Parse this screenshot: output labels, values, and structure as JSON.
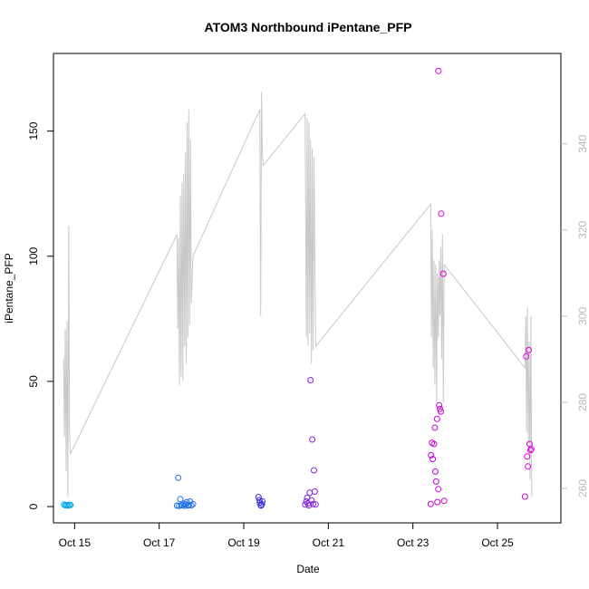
{
  "chart_data": {
    "type": "scatter",
    "title": "ATOM3 Northbound iPentane_PFP",
    "xlabel": "Date",
    "ylabel": "iPentane_PFP",
    "xlim": [
      14.5,
      26.5
    ],
    "ylim": [
      -6.5,
      181
    ],
    "x_ticks": [
      {
        "value": 15,
        "label": "Oct 15"
      },
      {
        "value": 17,
        "label": "Oct 17"
      },
      {
        "value": 19,
        "label": "Oct 19"
      },
      {
        "value": 21,
        "label": "Oct 21"
      },
      {
        "value": 23,
        "label": "Oct 23"
      },
      {
        "value": 25,
        "label": "Oct 25"
      }
    ],
    "y_ticks": [
      0,
      50,
      100,
      150
    ],
    "y2_ticks": [
      260,
      280,
      300,
      320,
      340
    ],
    "y2lim": [
      252,
      361
    ],
    "colors": {
      "axes": "#000000",
      "line": "#c8c8c8",
      "right_axis": "#b8b8b8",
      "gradient_start": "#00a8e8",
      "gradient_mid": "#2b2bd8",
      "gradient_end": "#e000e0"
    },
    "points": [
      {
        "x": 14.75,
        "y": 0.8,
        "color": "#00a8e8"
      },
      {
        "x": 14.78,
        "y": 0.5,
        "color": "#00a8e8"
      },
      {
        "x": 14.81,
        "y": 0.6,
        "color": "#00a8e8"
      },
      {
        "x": 14.84,
        "y": 0.4,
        "color": "#00a8e8"
      },
      {
        "x": 14.87,
        "y": 0.7,
        "color": "#00a8e8"
      },
      {
        "x": 14.9,
        "y": 0.6,
        "color": "#00a8e8"
      },
      {
        "x": 17.45,
        "y": 11.5,
        "color": "#1f6fe8"
      },
      {
        "x": 17.42,
        "y": 0.4,
        "color": "#1f6fe8"
      },
      {
        "x": 17.47,
        "y": 0.3,
        "color": "#1f6fe8"
      },
      {
        "x": 17.5,
        "y": 3.0,
        "color": "#1f6fe8"
      },
      {
        "x": 17.52,
        "y": 0.5,
        "color": "#1f6fe8"
      },
      {
        "x": 17.55,
        "y": 0.6,
        "color": "#1f6fe8"
      },
      {
        "x": 17.58,
        "y": 1.2,
        "color": "#1f6fe8"
      },
      {
        "x": 17.6,
        "y": 0.3,
        "color": "#1f6fe8"
      },
      {
        "x": 17.62,
        "y": 0.8,
        "color": "#1f6fe8"
      },
      {
        "x": 17.65,
        "y": 1.8,
        "color": "#1f6fe8"
      },
      {
        "x": 17.68,
        "y": 0.4,
        "color": "#1f6fe8"
      },
      {
        "x": 17.7,
        "y": 0.6,
        "color": "#1f6fe8"
      },
      {
        "x": 17.73,
        "y": 2.0,
        "color": "#1f6fe8"
      },
      {
        "x": 17.76,
        "y": 0.5,
        "color": "#1f6fe8"
      },
      {
        "x": 17.8,
        "y": 1.0,
        "color": "#1f6fe8"
      },
      {
        "x": 19.35,
        "y": 3.8,
        "color": "#3d2ed8"
      },
      {
        "x": 19.37,
        "y": 2.6,
        "color": "#3d2ed8"
      },
      {
        "x": 19.38,
        "y": 1.5,
        "color": "#3d2ed8"
      },
      {
        "x": 19.4,
        "y": 0.5,
        "color": "#3d2ed8"
      },
      {
        "x": 19.41,
        "y": 0.4,
        "color": "#3d2ed8"
      },
      {
        "x": 19.43,
        "y": 1.0,
        "color": "#3d2ed8"
      },
      {
        "x": 19.44,
        "y": 2.1,
        "color": "#3d2ed8"
      },
      {
        "x": 20.45,
        "y": 0.8,
        "color": "#7a22e0"
      },
      {
        "x": 20.48,
        "y": 2.0,
        "color": "#7a22e0"
      },
      {
        "x": 20.5,
        "y": 3.5,
        "color": "#7a22e0"
      },
      {
        "x": 20.52,
        "y": 1.2,
        "color": "#7a22e0"
      },
      {
        "x": 20.54,
        "y": 0.5,
        "color": "#7a22e0"
      },
      {
        "x": 20.56,
        "y": 5.5,
        "color": "#7a22e0"
      },
      {
        "x": 20.58,
        "y": 50.5,
        "color": "#7a22e0"
      },
      {
        "x": 20.6,
        "y": 2.5,
        "color": "#7a22e0"
      },
      {
        "x": 20.62,
        "y": 26.8,
        "color": "#8a1ee0"
      },
      {
        "x": 20.64,
        "y": 1.0,
        "color": "#8a1ee0"
      },
      {
        "x": 20.66,
        "y": 14.5,
        "color": "#8a1ee0"
      },
      {
        "x": 20.68,
        "y": 6.0,
        "color": "#8a1ee0"
      },
      {
        "x": 20.7,
        "y": 0.8,
        "color": "#8a1ee0"
      },
      {
        "x": 23.42,
        "y": 1.0,
        "color": "#c800e0"
      },
      {
        "x": 23.43,
        "y": 20.5,
        "color": "#c800e0"
      },
      {
        "x": 23.45,
        "y": 25.5,
        "color": "#c800e0"
      },
      {
        "x": 23.47,
        "y": 19.0,
        "color": "#c800e0"
      },
      {
        "x": 23.5,
        "y": 25.0,
        "color": "#c800e0"
      },
      {
        "x": 23.52,
        "y": 31.5,
        "color": "#c800e0"
      },
      {
        "x": 23.53,
        "y": 14.0,
        "color": "#c800e0"
      },
      {
        "x": 23.55,
        "y": 10.0,
        "color": "#c800e0"
      },
      {
        "x": 23.57,
        "y": 35.0,
        "color": "#c800e0"
      },
      {
        "x": 23.58,
        "y": 1.8,
        "color": "#c800e0"
      },
      {
        "x": 23.6,
        "y": 7.0,
        "color": "#c800e0"
      },
      {
        "x": 23.62,
        "y": 40.5,
        "color": "#c800e0"
      },
      {
        "x": 23.64,
        "y": 39.0,
        "color": "#c800e0"
      },
      {
        "x": 23.66,
        "y": 38.0,
        "color": "#c800e0"
      },
      {
        "x": 23.6,
        "y": 174.0,
        "color": "#d800e0"
      },
      {
        "x": 23.67,
        "y": 117.0,
        "color": "#d800e0"
      },
      {
        "x": 23.72,
        "y": 93.0,
        "color": "#d800e0"
      },
      {
        "x": 23.74,
        "y": 2.3,
        "color": "#d800e0"
      },
      {
        "x": 25.65,
        "y": 4.0,
        "color": "#e000e0"
      },
      {
        "x": 25.68,
        "y": 60.0,
        "color": "#e000e0"
      },
      {
        "x": 25.7,
        "y": 20.0,
        "color": "#e000e0"
      },
      {
        "x": 25.72,
        "y": 16.0,
        "color": "#e000e0"
      },
      {
        "x": 25.74,
        "y": 62.5,
        "color": "#e000e0"
      },
      {
        "x": 25.76,
        "y": 25.0,
        "color": "#e000e0"
      },
      {
        "x": 25.78,
        "y": 22.5,
        "color": "#e000e0"
      },
      {
        "x": 25.8,
        "y": 23.0,
        "color": "#e000e0"
      }
    ],
    "line": {
      "axis": "right",
      "x": [
        14.74,
        14.76,
        14.78,
        14.8,
        14.82,
        14.84,
        14.86,
        14.88,
        14.9,
        17.42,
        17.44,
        17.46,
        17.48,
        17.5,
        17.52,
        17.54,
        17.56,
        17.58,
        17.6,
        17.62,
        17.64,
        17.66,
        17.68,
        17.7,
        17.72,
        17.74,
        17.76,
        17.8,
        19.38,
        19.4,
        19.42,
        19.44,
        19.46,
        20.45,
        20.48,
        20.5,
        20.52,
        20.54,
        20.56,
        20.58,
        20.6,
        20.62,
        20.64,
        20.66,
        20.7,
        23.42,
        23.44,
        23.46,
        23.48,
        23.5,
        23.52,
        23.54,
        23.56,
        23.58,
        23.6,
        23.62,
        23.64,
        23.66,
        23.68,
        23.7,
        23.72,
        23.74,
        25.65,
        25.67,
        25.69,
        25.71,
        25.73,
        25.75,
        25.77,
        25.79,
        25.81
      ],
      "y": [
        290,
        272,
        297,
        264,
        299,
        258,
        321,
        273,
        268,
        319,
        297,
        318,
        284,
        328,
        286,
        331,
        285,
        333,
        293,
        338,
        289,
        345,
        295,
        348,
        298,
        341,
        303,
        314,
        348,
        300,
        352,
        338,
        335,
        347,
        295,
        346,
        293,
        345,
        296,
        341,
        289,
        339,
        292,
        337,
        293,
        326,
        295,
        320,
        288,
        313,
        284,
        312,
        280,
        310,
        295,
        313,
        300,
        316,
        290,
        319,
        280,
        312,
        288,
        300,
        273,
        302,
        270,
        294,
        262,
        300,
        258
      ]
    }
  }
}
